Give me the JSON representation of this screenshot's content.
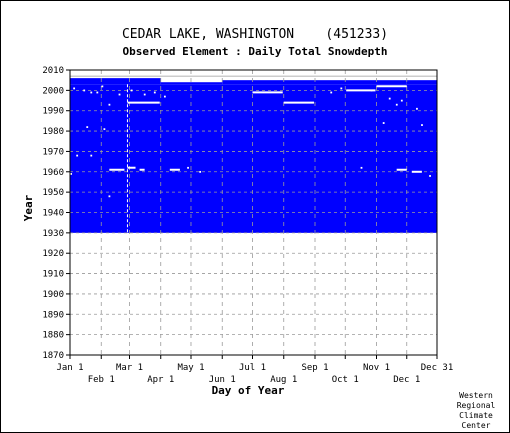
{
  "chart_data": {
    "type": "heatmap",
    "title": "CEDAR LAKE, WASHINGTON    (451233)",
    "subtitle": "Observed Element : Daily Total Snowdepth",
    "xlabel": "Day of Year",
    "ylabel": "Year",
    "x_range_days": [
      1,
      365
    ],
    "ylim": [
      1870,
      2010
    ],
    "y_ticks": [
      1870,
      1880,
      1890,
      1900,
      1910,
      1920,
      1930,
      1940,
      1950,
      1960,
      1970,
      1980,
      1990,
      2000,
      2010
    ],
    "x_ticks_upper": [
      {
        "label": "Jan 1",
        "day": 1
      },
      {
        "label": "Mar 1",
        "day": 60
      },
      {
        "label": "May 1",
        "day": 121
      },
      {
        "label": "Jul 1",
        "day": 182
      },
      {
        "label": "Sep 1",
        "day": 244
      },
      {
        "label": "Nov 1",
        "day": 305
      },
      {
        "label": "Dec 31",
        "day": 365
      }
    ],
    "x_ticks_lower": [
      {
        "label": "Feb 1",
        "day": 32
      },
      {
        "label": "Apr 1",
        "day": 91
      },
      {
        "label": "Jun 1",
        "day": 152
      },
      {
        "label": "Aug 1",
        "day": 213
      },
      {
        "label": "Oct 1",
        "day": 274
      },
      {
        "label": "Dec 1",
        "day": 335
      }
    ],
    "grid": true,
    "data_color": "#0000ff",
    "missing_color": "#ffffff",
    "coverage_blocks": [
      {
        "day_start": 1,
        "day_end": 365,
        "year_start": 1930,
        "year_end": 2003
      },
      {
        "day_start": 1,
        "day_end": 60,
        "year_start": 2003,
        "year_end": 2006
      },
      {
        "day_start": 60,
        "day_end": 91,
        "year_start": 2003,
        "year_end": 2006
      },
      {
        "day_start": 91,
        "day_end": 152,
        "year_start": 2003,
        "year_end": 2004
      },
      {
        "day_start": 152,
        "day_end": 335,
        "year_start": 2003,
        "year_end": 2005
      },
      {
        "day_start": 335,
        "day_end": 365,
        "year_start": 2003,
        "year_end": 2005
      }
    ],
    "missing_segments": [
      {
        "day_start": 58,
        "day_end": 90,
        "year": 1994
      },
      {
        "day_start": 182,
        "day_end": 212,
        "year": 1999
      },
      {
        "day_start": 213,
        "day_end": 243,
        "year": 1994
      },
      {
        "day_start": 275,
        "day_end": 304,
        "year": 2000
      },
      {
        "day_start": 305,
        "day_end": 335,
        "year": 2002
      },
      {
        "day_start": 40,
        "day_end": 55,
        "year": 1961
      },
      {
        "day_start": 58,
        "day_end": 66,
        "year": 1962
      },
      {
        "day_start": 70,
        "day_end": 75,
        "year": 1961
      },
      {
        "day_start": 100,
        "day_end": 110,
        "year": 1961
      },
      {
        "day_start": 325,
        "day_end": 335,
        "year": 1961
      },
      {
        "day_start": 340,
        "day_end": 350,
        "year": 1960
      }
    ],
    "missing_points": [
      {
        "day": 5,
        "year": 2001
      },
      {
        "day": 15,
        "year": 2000
      },
      {
        "day": 22,
        "year": 1999
      },
      {
        "day": 28,
        "year": 1999
      },
      {
        "day": 33,
        "year": 2002
      },
      {
        "day": 40,
        "year": 1993
      },
      {
        "day": 50,
        "year": 1998
      },
      {
        "day": 62,
        "year": 2000
      },
      {
        "day": 75,
        "year": 1998
      },
      {
        "day": 85,
        "year": 1999
      },
      {
        "day": 95,
        "year": 1997
      },
      {
        "day": 18,
        "year": 1982
      },
      {
        "day": 35,
        "year": 1981
      },
      {
        "day": 8,
        "year": 1968
      },
      {
        "day": 22,
        "year": 1968
      },
      {
        "day": 40,
        "year": 1948
      },
      {
        "day": 118,
        "year": 1962
      },
      {
        "day": 130,
        "year": 1960
      },
      {
        "day": 260,
        "year": 1999
      },
      {
        "day": 270,
        "year": 2001
      },
      {
        "day": 300,
        "year": 2000
      },
      {
        "day": 312,
        "year": 1984
      },
      {
        "day": 318,
        "year": 1996
      },
      {
        "day": 325,
        "year": 1993
      },
      {
        "day": 330,
        "year": 1995
      },
      {
        "day": 345,
        "year": 1991
      },
      {
        "day": 350,
        "year": 1983
      },
      {
        "day": 358,
        "year": 1958
      },
      {
        "day": 2,
        "year": 1959
      },
      {
        "day": 290,
        "year": 1962
      }
    ],
    "vertical_missing": [
      {
        "day": 58,
        "year_start": 1930,
        "year_end": 2003
      }
    ]
  },
  "credit": [
    "Western",
    "Regional",
    "Climate",
    "Center"
  ]
}
